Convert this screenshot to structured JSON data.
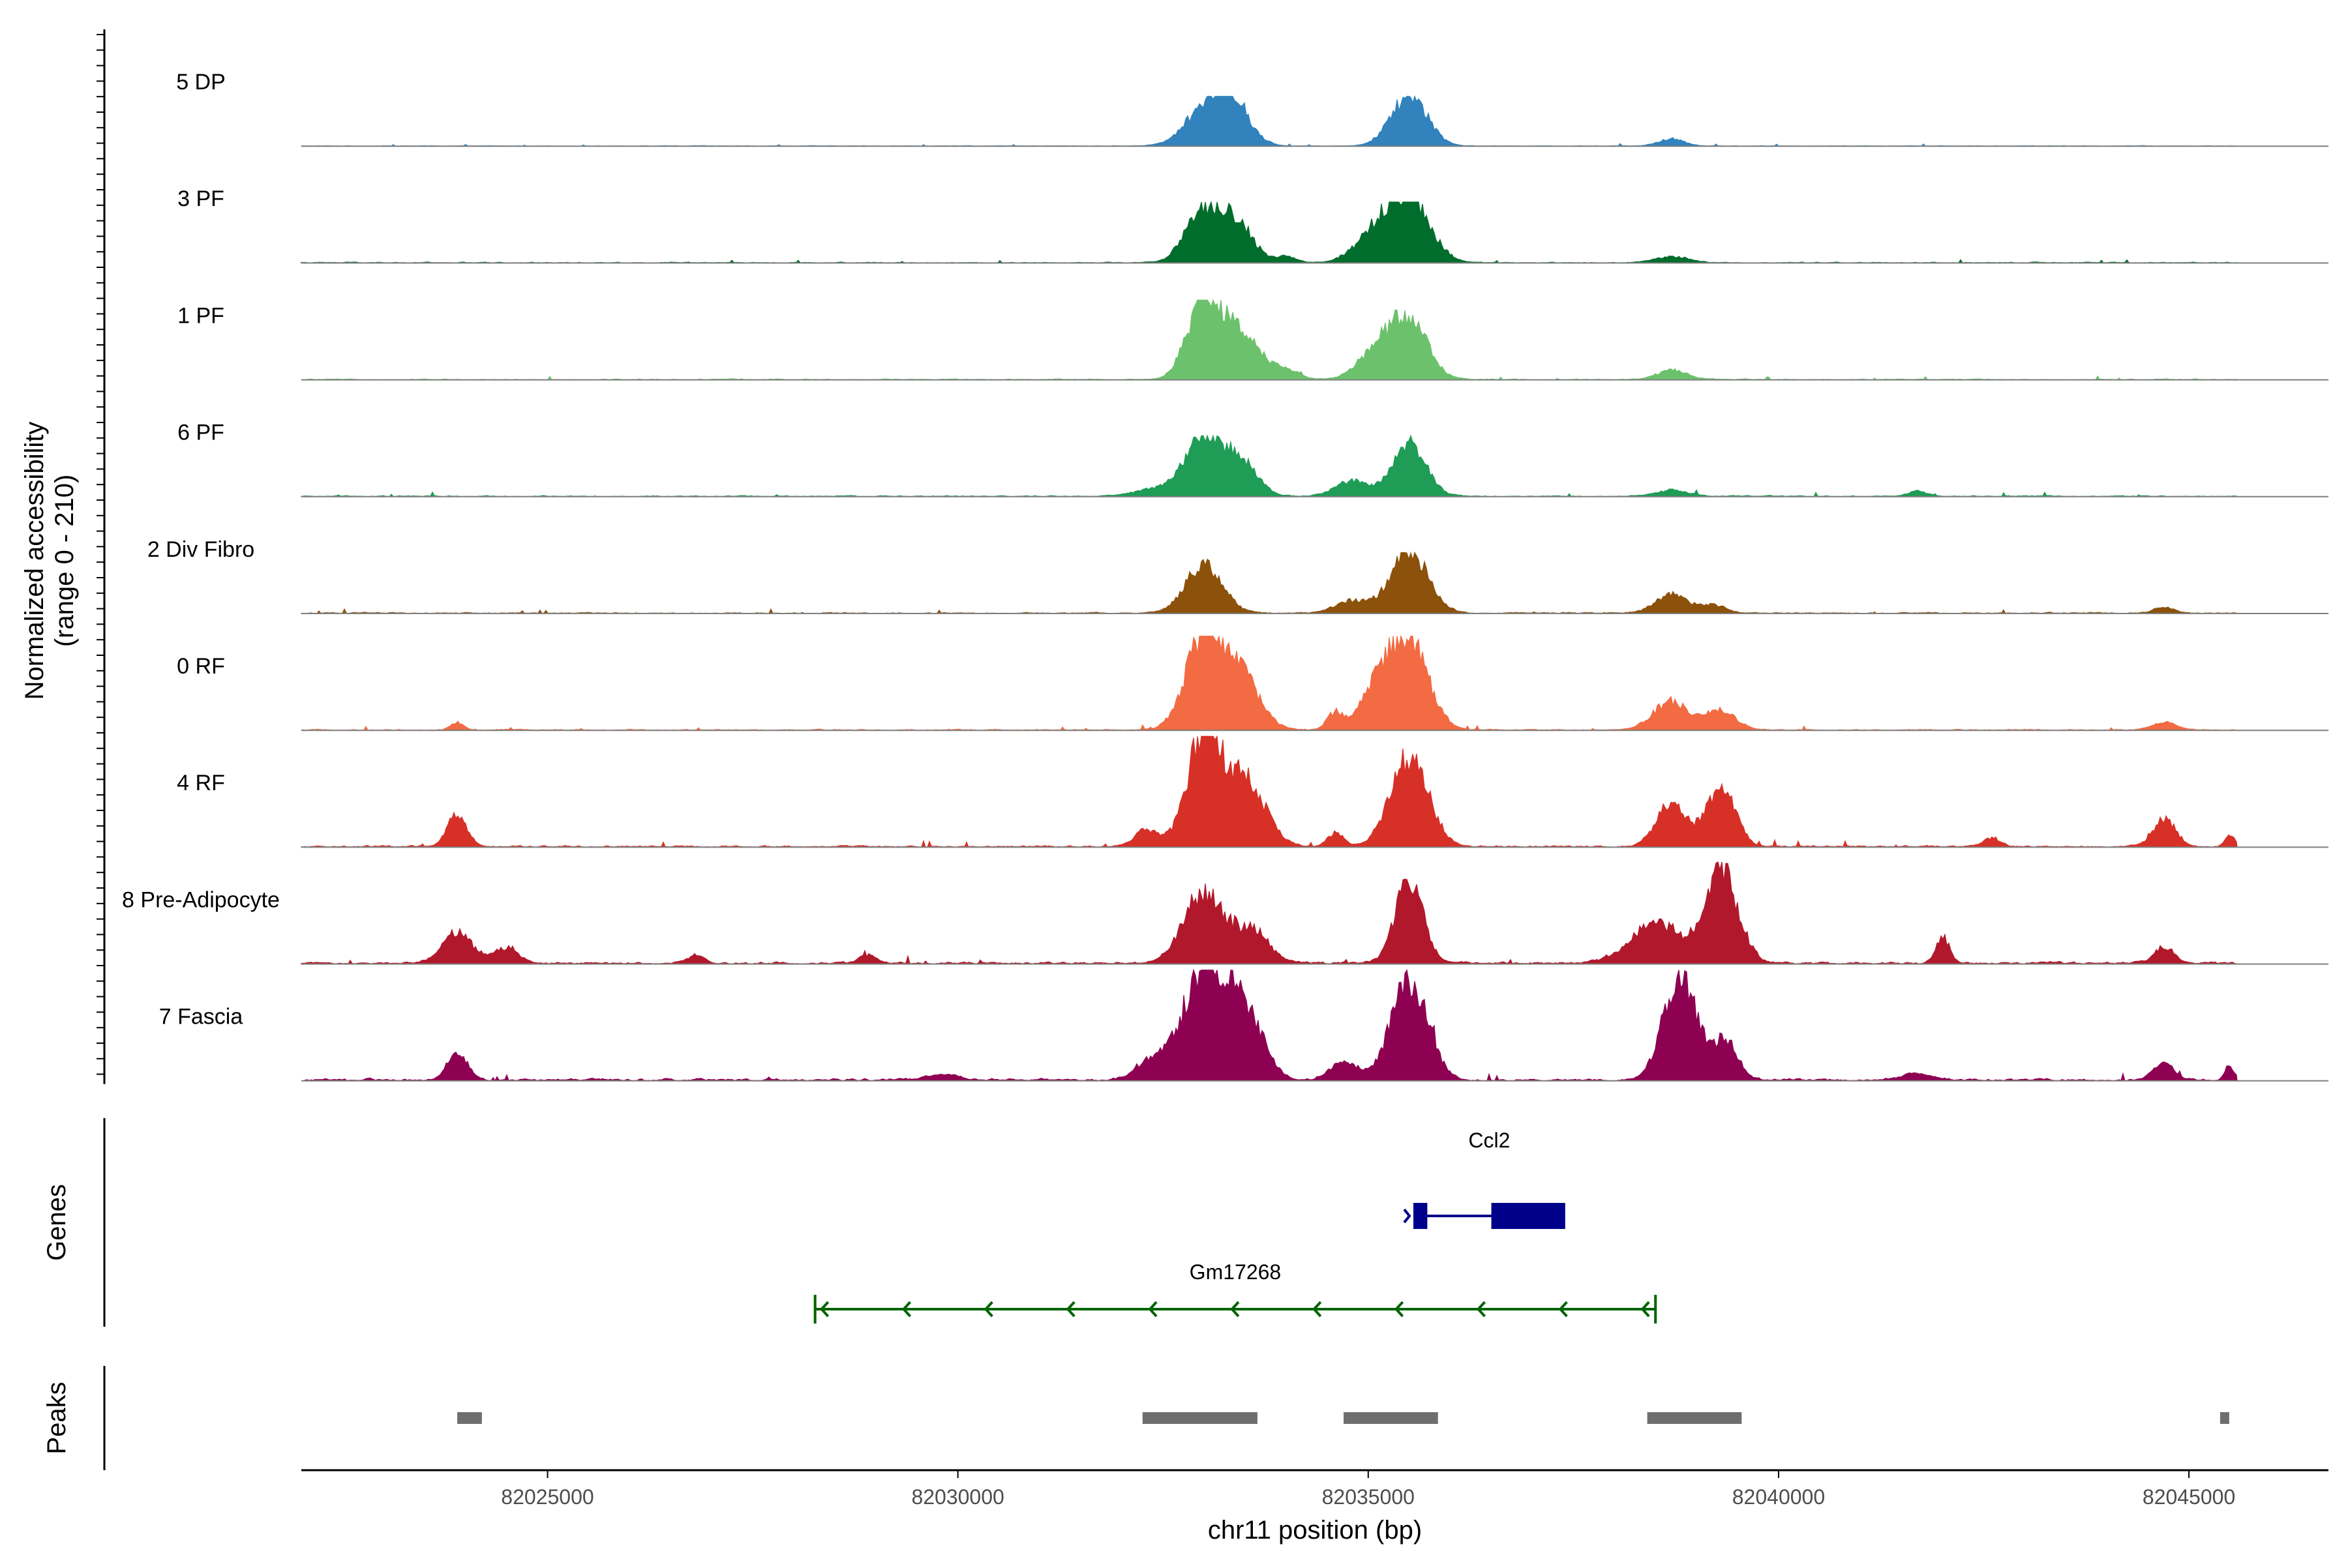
{
  "chart_data": {
    "type": "area",
    "title": "",
    "ylabel": "Normalized accessibility\n(range 0 - 210)",
    "ylabel_lines": [
      "Normalized accessibility",
      "(range 0 - 210)"
    ],
    "xlabel": "chr11 position (bp)",
    "y_range": [
      0,
      210
    ],
    "x_range": [
      82022000,
      82046700
    ],
    "x_ticks": [
      82025000,
      82030000,
      82035000,
      82040000,
      82045000
    ],
    "x_tick_labels": [
      "82025000",
      "82030000",
      "82035000",
      "82040000",
      "82045000"
    ],
    "tracks": [
      {
        "name": "5 DP",
        "color": "#3182bd",
        "scale": 0.45,
        "noise": 0.03,
        "peaks": [
          [
            82033100,
            280,
            0.9
          ],
          [
            82033350,
            200,
            0.5
          ],
          [
            82035500,
            220,
            1.0
          ],
          [
            82038700,
            150,
            0.15
          ]
        ]
      },
      {
        "name": "3 PF",
        "color": "#006d2c",
        "scale": 0.55,
        "noise": 0.04,
        "peaks": [
          [
            82033000,
            220,
            0.85
          ],
          [
            82033400,
            200,
            0.6
          ],
          [
            82035500,
            250,
            1.0
          ],
          [
            82035100,
            250,
            0.45
          ],
          [
            82034000,
            120,
            0.1
          ],
          [
            82038700,
            200,
            0.1
          ]
        ]
      },
      {
        "name": "1 PF",
        "color": "#6cc26c",
        "scale": 0.72,
        "noise": 0.03,
        "peaks": [
          [
            82033000,
            200,
            1.0
          ],
          [
            82033450,
            240,
            0.55
          ],
          [
            82034000,
            150,
            0.12
          ],
          [
            82035500,
            220,
            0.75
          ],
          [
            82035100,
            220,
            0.35
          ],
          [
            82038700,
            180,
            0.12
          ]
        ]
      },
      {
        "name": "6 PF",
        "color": "#1f9c56",
        "scale": 0.55,
        "noise": 0.05,
        "peaks": [
          [
            82033000,
            220,
            1.0
          ],
          [
            82033450,
            200,
            0.55
          ],
          [
            82032400,
            250,
            0.12
          ],
          [
            82035500,
            200,
            0.9
          ],
          [
            82034800,
            200,
            0.25
          ],
          [
            82038700,
            200,
            0.1
          ],
          [
            82041700,
            120,
            0.08
          ]
        ]
      },
      {
        "name": "2 Div Fibro",
        "color": "#8c510a",
        "scale": 0.55,
        "noise": 0.05,
        "peaks": [
          [
            82033000,
            220,
            0.8
          ],
          [
            82035500,
            230,
            1.0
          ],
          [
            82034800,
            200,
            0.2
          ],
          [
            82038700,
            200,
            0.3
          ],
          [
            82039200,
            150,
            0.12
          ],
          [
            82044700,
            120,
            0.1
          ]
        ]
      },
      {
        "name": "0 RF",
        "color": "#f26b43",
        "scale": 0.85,
        "noise": 0.03,
        "peaks": [
          [
            82033000,
            220,
            1.0
          ],
          [
            82033450,
            230,
            0.55
          ],
          [
            82034600,
            100,
            0.18
          ],
          [
            82035500,
            230,
            0.95
          ],
          [
            82035100,
            200,
            0.4
          ],
          [
            82038700,
            220,
            0.3
          ],
          [
            82039300,
            180,
            0.2
          ],
          [
            82044700,
            150,
            0.08
          ],
          [
            82023900,
            80,
            0.08
          ]
        ]
      },
      {
        "name": "4 RF",
        "color": "#d73027",
        "scale": 1.0,
        "noise": 0.04,
        "peaks": [
          [
            82023900,
            120,
            0.28
          ],
          [
            82032300,
            150,
            0.15
          ],
          [
            82033000,
            200,
            1.0
          ],
          [
            82033500,
            240,
            0.6
          ],
          [
            82034600,
            100,
            0.12
          ],
          [
            82035500,
            230,
            0.8
          ],
          [
            82038700,
            180,
            0.4
          ],
          [
            82039300,
            170,
            0.55
          ],
          [
            82042600,
            100,
            0.08
          ],
          [
            82044700,
            140,
            0.25
          ],
          [
            82045500,
            60,
            0.1
          ]
        ]
      },
      {
        "name": "8 Pre-Adipocyte",
        "color": "#b2182b",
        "scale": 0.92,
        "noise": 0.06,
        "peaks": [
          [
            82023900,
            180,
            0.3
          ],
          [
            82024500,
            150,
            0.15
          ],
          [
            82033000,
            250,
            0.7
          ],
          [
            82033600,
            200,
            0.3
          ],
          [
            82035500,
            170,
            0.8
          ],
          [
            82038500,
            300,
            0.4
          ],
          [
            82039300,
            200,
            0.9
          ],
          [
            82042000,
            80,
            0.25
          ],
          [
            82044700,
            120,
            0.15
          ],
          [
            82026800,
            100,
            0.08
          ],
          [
            82028900,
            100,
            0.08
          ]
        ]
      },
      {
        "name": "7 Fascia",
        "color": "#8e0152",
        "scale": 1.0,
        "noise": 0.06,
        "peaks": [
          [
            82023900,
            120,
            0.25
          ],
          [
            82032400,
            200,
            0.2
          ],
          [
            82033000,
            250,
            1.0
          ],
          [
            82033500,
            220,
            0.6
          ],
          [
            82034700,
            150,
            0.18
          ],
          [
            82035500,
            220,
            0.9
          ],
          [
            82038800,
            200,
            0.95
          ],
          [
            82039350,
            150,
            0.35
          ],
          [
            82044700,
            120,
            0.15
          ],
          [
            82045500,
            60,
            0.12
          ],
          [
            82029800,
            200,
            0.05
          ],
          [
            82041700,
            200,
            0.05
          ]
        ]
      }
    ],
    "genes_track_label": "Genes",
    "genes": [
      {
        "name": "Ccl2",
        "start": 82035550,
        "end": 82037400,
        "strand": "+",
        "color": "#00008b",
        "exons": [
          [
            82035550,
            82035720
          ],
          [
            82036500,
            82037400
          ]
        ]
      },
      {
        "name": "Gm17268",
        "start": 82028260,
        "end": 82038500,
        "strand": "-",
        "color": "#006400",
        "exons": []
      }
    ],
    "peaks_track_label": "Peaks",
    "peaks": [
      [
        82023900,
        82024200
      ],
      [
        82032250,
        82033650
      ],
      [
        82034700,
        82035850
      ],
      [
        82038400,
        82039550
      ],
      [
        82045380,
        82045480
      ]
    ]
  }
}
